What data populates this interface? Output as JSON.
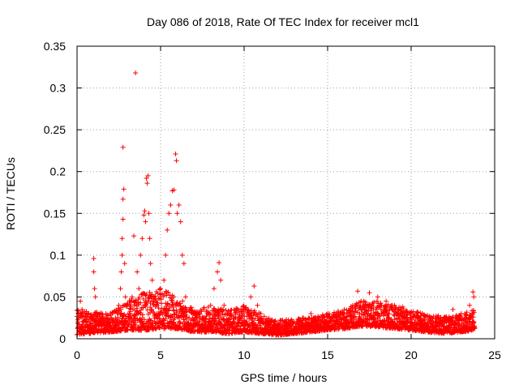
{
  "chart_data": {
    "type": "scatter",
    "title": "Day 086 of 2018, Rate Of TEC Index for receiver mcl1",
    "xlabel": "GPS time / hours",
    "ylabel": "ROTI / TECUs",
    "xlim": [
      0,
      25
    ],
    "ylim": [
      0,
      0.35
    ],
    "xticks": [
      "0",
      "5",
      "10",
      "15",
      "20",
      "25"
    ],
    "yticks": [
      "0",
      "0.05",
      "0.1",
      "0.15",
      "0.2",
      "0.25",
      "0.3",
      "0.35"
    ],
    "grid": true,
    "marker": "+",
    "color": "#ff0000",
    "series": [
      {
        "name": "ROTI",
        "points": [
          [
            0.1,
            0.03
          ],
          [
            0.2,
            0.045
          ],
          [
            0.3,
            0.035
          ],
          [
            0.4,
            0.02
          ],
          [
            0.5,
            0.028
          ],
          [
            0.6,
            0.015
          ],
          [
            0.8,
            0.012
          ],
          [
            1.0,
            0.096
          ],
          [
            1.0,
            0.08
          ],
          [
            1.05,
            0.06
          ],
          [
            1.1,
            0.05
          ],
          [
            1.2,
            0.03
          ],
          [
            1.5,
            0.02
          ],
          [
            1.8,
            0.025
          ],
          [
            2.0,
            0.03
          ],
          [
            2.3,
            0.025
          ],
          [
            2.5,
            0.04
          ],
          [
            2.6,
            0.06
          ],
          [
            2.65,
            0.08
          ],
          [
            2.7,
            0.1
          ],
          [
            2.7,
            0.12
          ],
          [
            2.75,
            0.143
          ],
          [
            2.75,
            0.167
          ],
          [
            2.8,
            0.179
          ],
          [
            2.75,
            0.229
          ],
          [
            2.85,
            0.09
          ],
          [
            2.9,
            0.05
          ],
          [
            3.0,
            0.04
          ],
          [
            3.2,
            0.03
          ],
          [
            3.3,
            0.05
          ],
          [
            3.4,
            0.123
          ],
          [
            3.5,
            0.318
          ],
          [
            3.6,
            0.08
          ],
          [
            3.7,
            0.06
          ],
          [
            3.8,
            0.1
          ],
          [
            3.9,
            0.12
          ],
          [
            4.0,
            0.148
          ],
          [
            4.05,
            0.153
          ],
          [
            4.1,
            0.14
          ],
          [
            4.15,
            0.192
          ],
          [
            4.2,
            0.186
          ],
          [
            4.25,
            0.195
          ],
          [
            4.3,
            0.15
          ],
          [
            4.35,
            0.12
          ],
          [
            4.4,
            0.09
          ],
          [
            4.5,
            0.07
          ],
          [
            4.6,
            0.05
          ],
          [
            4.8,
            0.04
          ],
          [
            5.0,
            0.06
          ],
          [
            5.2,
            0.07
          ],
          [
            5.3,
            0.1
          ],
          [
            5.4,
            0.13
          ],
          [
            5.5,
            0.15
          ],
          [
            5.6,
            0.16
          ],
          [
            5.7,
            0.177
          ],
          [
            5.8,
            0.178
          ],
          [
            5.9,
            0.221
          ],
          [
            5.95,
            0.213
          ],
          [
            6.0,
            0.15
          ],
          [
            6.1,
            0.16
          ],
          [
            6.2,
            0.14
          ],
          [
            6.3,
            0.1
          ],
          [
            6.4,
            0.09
          ],
          [
            6.5,
            0.05
          ],
          [
            6.8,
            0.035
          ],
          [
            7.0,
            0.03
          ],
          [
            7.5,
            0.025
          ],
          [
            7.8,
            0.03
          ],
          [
            8.0,
            0.04
          ],
          [
            8.2,
            0.06
          ],
          [
            8.4,
            0.08
          ],
          [
            8.5,
            0.091
          ],
          [
            8.6,
            0.07
          ],
          [
            8.8,
            0.04
          ],
          [
            9.0,
            0.03
          ],
          [
            9.5,
            0.025
          ],
          [
            10.0,
            0.035
          ],
          [
            10.4,
            0.05
          ],
          [
            10.6,
            0.063
          ],
          [
            10.8,
            0.04
          ],
          [
            11.0,
            0.03
          ],
          [
            11.5,
            0.02
          ],
          [
            12.0,
            0.015
          ],
          [
            12.5,
            0.018
          ],
          [
            13.0,
            0.02
          ],
          [
            13.5,
            0.025
          ],
          [
            14.0,
            0.03
          ],
          [
            14.5,
            0.025
          ],
          [
            15.0,
            0.03
          ],
          [
            15.5,
            0.03
          ],
          [
            16.0,
            0.035
          ],
          [
            16.5,
            0.04
          ],
          [
            16.8,
            0.057
          ],
          [
            17.0,
            0.045
          ],
          [
            17.5,
            0.055
          ],
          [
            18.0,
            0.05
          ],
          [
            18.5,
            0.045
          ],
          [
            19.0,
            0.04
          ],
          [
            19.5,
            0.038
          ],
          [
            20.0,
            0.03
          ],
          [
            20.5,
            0.025
          ],
          [
            21.0,
            0.02
          ],
          [
            21.5,
            0.02
          ],
          [
            22.0,
            0.025
          ],
          [
            22.5,
            0.035
          ],
          [
            23.0,
            0.03
          ],
          [
            23.5,
            0.04
          ],
          [
            23.7,
            0.056
          ],
          [
            23.75,
            0.05
          ]
        ]
      }
    ],
    "dense_band": {
      "note": "continuous dense band of observations along the bottom of the plot",
      "x_start": 0,
      "x_end": 23.8,
      "profile_x": [
        0,
        2,
        3,
        4,
        5,
        6,
        7,
        8,
        9,
        10,
        11,
        12,
        13,
        14,
        15,
        16,
        17,
        18,
        19,
        20,
        21,
        22,
        23,
        23.8
      ],
      "profile_low": [
        0.005,
        0.008,
        0.01,
        0.01,
        0.012,
        0.012,
        0.008,
        0.008,
        0.006,
        0.008,
        0.006,
        0.004,
        0.006,
        0.008,
        0.01,
        0.012,
        0.015,
        0.014,
        0.012,
        0.01,
        0.008,
        0.006,
        0.008,
        0.01
      ],
      "profile_high": [
        0.035,
        0.03,
        0.045,
        0.055,
        0.06,
        0.05,
        0.035,
        0.04,
        0.035,
        0.04,
        0.03,
        0.022,
        0.024,
        0.026,
        0.03,
        0.035,
        0.045,
        0.045,
        0.04,
        0.035,
        0.028,
        0.028,
        0.03,
        0.035
      ]
    }
  }
}
